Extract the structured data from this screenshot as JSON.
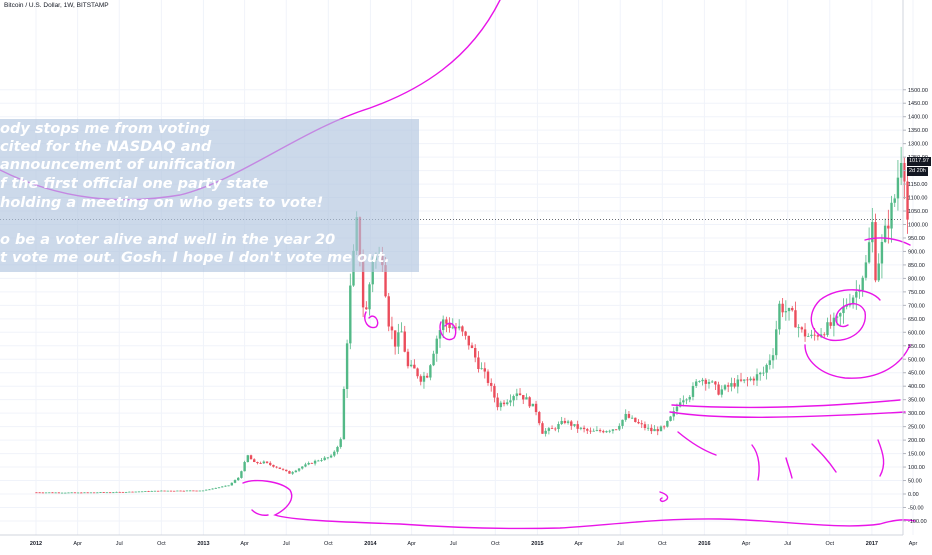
{
  "chart_data": {
    "type": "candlestick",
    "title": "Bitcoin / U.S. Dollar, 1W, BITSTAMP",
    "ylim": [
      -130,
      1520
    ],
    "y_ticks": [
      -100,
      -50,
      0,
      50,
      100,
      150,
      200,
      250,
      300,
      350,
      400,
      450,
      500,
      550,
      600,
      650,
      700,
      750,
      800,
      850,
      900,
      950,
      1000,
      1050,
      1100,
      1150,
      1200,
      1250,
      1300,
      1350,
      1400,
      1450,
      1500
    ],
    "x_tick_labels": [
      "2012",
      "Apr",
      "Jul",
      "Oct",
      "2013",
      "Apr",
      "Jul",
      "Oct",
      "2014",
      "Apr",
      "Jul",
      "Oct",
      "2015",
      "Apr",
      "Jul",
      "Oct",
      "2016",
      "Apr",
      "Jul",
      "Oct",
      "2017",
      "Apr"
    ],
    "bold_x_ticks": [
      "2012",
      "2013",
      "2014",
      "2015",
      "2016",
      "2017"
    ],
    "last_price": "1017.97",
    "countdown": "2d 20h",
    "price_path": [
      [
        "2012-01-02",
        6
      ],
      [
        "2012-04-02",
        5
      ],
      [
        "2012-07-02",
        7
      ],
      [
        "2012-10-01",
        12
      ],
      [
        "2012-12-31",
        13
      ],
      [
        "2013-02-25",
        32
      ],
      [
        "2013-03-18",
        60
      ],
      [
        "2013-04-08",
        142
      ],
      [
        "2013-04-22",
        115
      ],
      [
        "2013-05-13",
        117
      ],
      [
        "2013-06-10",
        100
      ],
      [
        "2013-07-08",
        77
      ],
      [
        "2013-08-05",
        102
      ],
      [
        "2013-09-09",
        126
      ],
      [
        "2013-10-07",
        138
      ],
      [
        "2013-10-28",
        200
      ],
      [
        "2013-11-18",
        760
      ],
      [
        "2013-12-02",
        1000
      ],
      [
        "2013-12-09",
        880
      ],
      [
        "2013-12-16",
        700
      ],
      [
        "2013-12-23",
        680
      ],
      [
        "2014-01-06",
        880
      ],
      [
        "2014-01-27",
        880
      ],
      [
        "2014-02-10",
        640
      ],
      [
        "2014-02-24",
        560
      ],
      [
        "2014-03-10",
        600
      ],
      [
        "2014-03-24",
        470
      ],
      [
        "2014-04-07",
        460
      ],
      [
        "2014-04-21",
        430
      ],
      [
        "2014-05-05",
        445
      ],
      [
        "2014-05-26",
        580
      ],
      [
        "2014-06-09",
        640
      ],
      [
        "2014-06-30",
        620
      ],
      [
        "2014-07-14",
        610
      ],
      [
        "2014-08-04",
        560
      ],
      [
        "2014-08-25",
        480
      ],
      [
        "2014-09-15",
        420
      ],
      [
        "2014-10-06",
        330
      ],
      [
        "2014-10-27",
        350
      ],
      [
        "2014-11-17",
        380
      ],
      [
        "2014-12-08",
        350
      ],
      [
        "2014-12-29",
        310
      ],
      [
        "2015-01-12",
        230
      ],
      [
        "2015-02-02",
        240
      ],
      [
        "2015-03-02",
        270
      ],
      [
        "2015-03-30",
        245
      ],
      [
        "2015-04-27",
        230
      ],
      [
        "2015-05-25",
        235
      ],
      [
        "2015-06-22",
        245
      ],
      [
        "2015-07-13",
        290
      ],
      [
        "2015-08-10",
        260
      ],
      [
        "2015-09-07",
        235
      ],
      [
        "2015-10-05",
        245
      ],
      [
        "2015-10-26",
        300
      ],
      [
        "2015-11-09",
        350
      ],
      [
        "2015-11-30",
        370
      ],
      [
        "2015-12-21",
        430
      ],
      [
        "2016-01-11",
        420
      ],
      [
        "2016-02-01",
        380
      ],
      [
        "2016-03-07",
        410
      ],
      [
        "2016-04-04",
        420
      ],
      [
        "2016-05-09",
        450
      ],
      [
        "2016-05-30",
        530
      ],
      [
        "2016-06-13",
        700
      ],
      [
        "2016-06-27",
        680
      ],
      [
        "2016-07-11",
        660
      ],
      [
        "2016-08-01",
        600
      ],
      [
        "2016-08-22",
        580
      ],
      [
        "2016-09-19",
        610
      ],
      [
        "2016-10-17",
        640
      ],
      [
        "2016-11-07",
        710
      ],
      [
        "2016-11-28",
        750
      ],
      [
        "2016-12-19",
        850
      ],
      [
        "2017-01-02",
        1000
      ],
      [
        "2017-01-09",
        820
      ],
      [
        "2017-01-30",
        970
      ],
      [
        "2017-02-20",
        1100
      ],
      [
        "2017-03-06",
        1260
      ],
      [
        "2017-03-13",
        1200
      ],
      [
        "2017-03-20",
        1018
      ]
    ],
    "candle_colors": {
      "up": "#53b987",
      "down": "#eb4d5c"
    }
  },
  "annotation": {
    "lines": [
      "ody stops me from voting",
      "cited for the NASDAQ and",
      "announcement of unification",
      "f the first official one party state",
      "holding a meeting on who gets to vote!",
      "",
      "o be a voter alive and well in the year 20",
      "t vote me out. Gosh. I hope I don't vote  me out."
    ]
  },
  "colors": {
    "drawing": "#e815e8",
    "note_box": "#b0c4de",
    "axis_text": "#131722",
    "grid": "#f0f3fa"
  }
}
